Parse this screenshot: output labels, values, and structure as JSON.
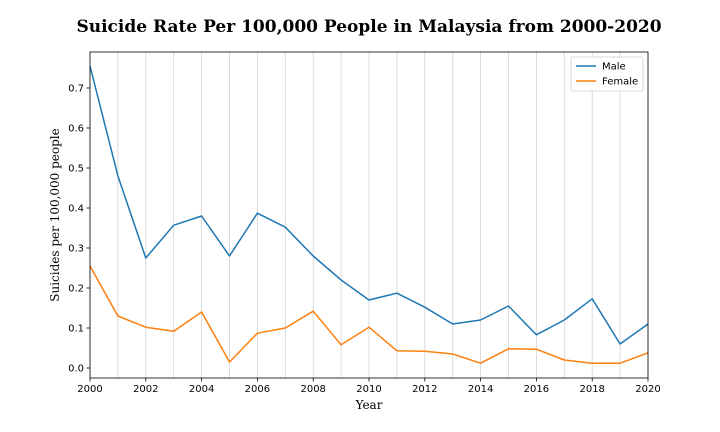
{
  "chart_data": {
    "type": "line",
    "title": "Suicide Rate Per 100,000 People in Malaysia from 2000-2020",
    "xlabel": "Year",
    "ylabel": "Suicides per 100,000 people",
    "x": [
      2000,
      2001,
      2002,
      2003,
      2004,
      2005,
      2006,
      2007,
      2008,
      2009,
      2010,
      2011,
      2012,
      2013,
      2014,
      2015,
      2016,
      2017,
      2018,
      2019,
      2020
    ],
    "xlim": [
      2000,
      2020
    ],
    "ylim": [
      -0.025,
      0.79
    ],
    "x_ticks": [
      "2000",
      "2002",
      "2004",
      "2006",
      "2008",
      "2010",
      "2012",
      "2014",
      "2016",
      "2018",
      "2020"
    ],
    "y_ticks": [
      "0.0",
      "0.1",
      "0.2",
      "0.3",
      "0.4",
      "0.5",
      "0.6",
      "0.7"
    ],
    "grid": "vertical",
    "legend_position": "top-right",
    "series": [
      {
        "name": "Male",
        "color": "#1f77b4",
        "values": [
          0.755,
          0.48,
          0.275,
          0.357,
          0.38,
          0.28,
          0.387,
          0.352,
          0.28,
          0.22,
          0.17,
          0.187,
          0.152,
          0.11,
          0.12,
          0.155,
          0.083,
          0.12,
          0.173,
          0.06,
          0.11
        ]
      },
      {
        "name": "Female",
        "color": "#ff7f0e",
        "values": [
          0.255,
          0.13,
          0.102,
          0.092,
          0.14,
          0.015,
          0.087,
          0.1,
          0.142,
          0.058,
          0.102,
          0.043,
          0.042,
          0.035,
          0.012,
          0.048,
          0.047,
          0.02,
          0.012,
          0.012,
          0.038
        ]
      }
    ]
  }
}
